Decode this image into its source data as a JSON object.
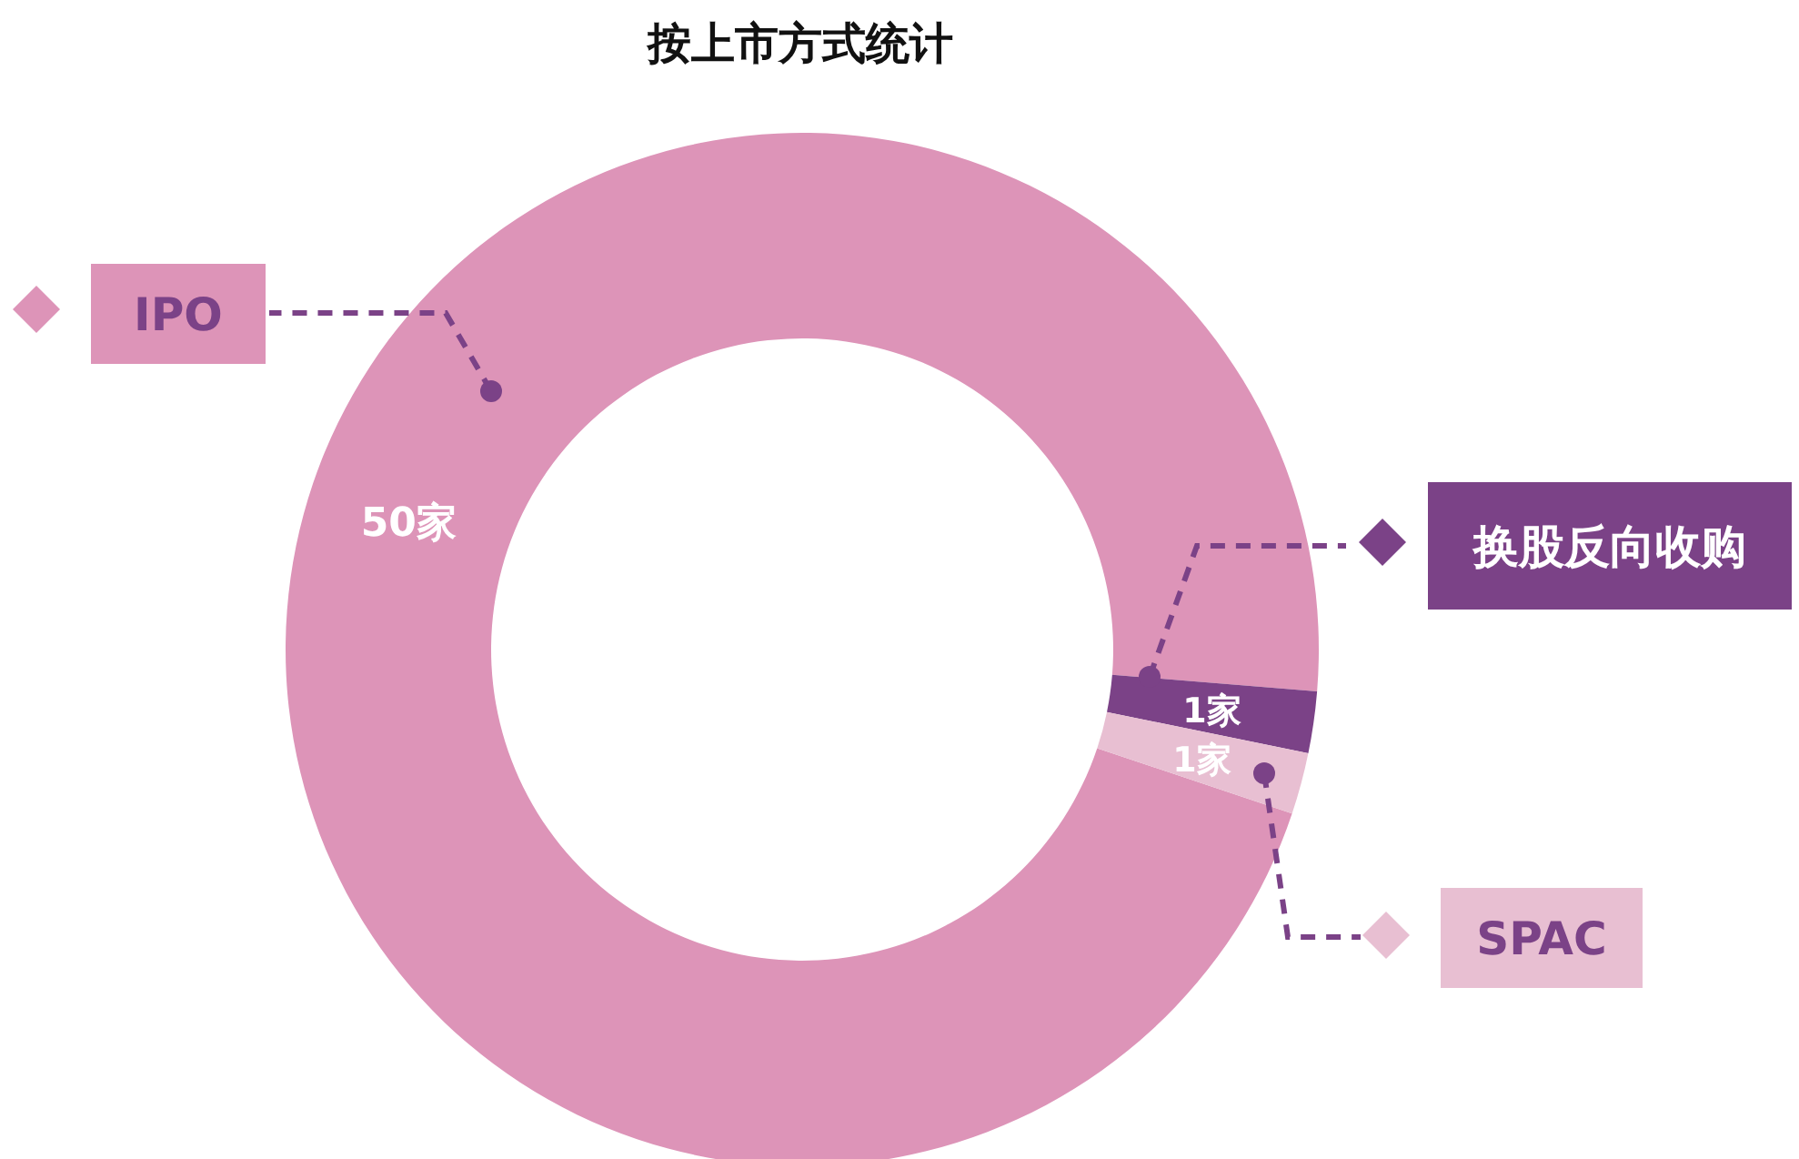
{
  "chart_data": {
    "type": "donut",
    "title": "按上市方式统计",
    "categories": [
      "IPO",
      "换股反向收购",
      "SPAC"
    ],
    "values": [
      50,
      1,
      1
    ],
    "colors": [
      "#dd94b8",
      "#7b4287",
      "#e8bfd2"
    ],
    "value_labels": [
      "50家",
      "1家",
      "1家"
    ],
    "legend": "right"
  }
}
